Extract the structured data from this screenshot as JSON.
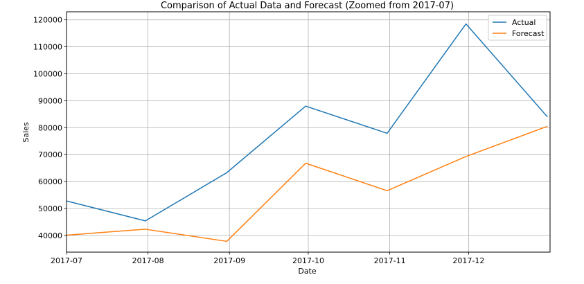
{
  "chart_data": {
    "type": "line",
    "title": "Comparison of Actual Data and Forecast (Zoomed from 2017-07)",
    "xlabel": "Date",
    "ylabel": "Sales",
    "x": [
      "2017-07-01",
      "2017-07-31",
      "2017-08-31",
      "2017-09-30",
      "2017-10-31",
      "2017-11-30",
      "2017-12-31"
    ],
    "x_ticks": [
      "2017-07",
      "2017-08",
      "2017-09",
      "2017-10",
      "2017-11",
      "2017-12"
    ],
    "xlim": [
      "2017-07-01",
      "2018-01-01"
    ],
    "y_ticks": [
      40000,
      50000,
      60000,
      70000,
      80000,
      90000,
      100000,
      110000,
      120000
    ],
    "ylim": [
      33800,
      123000
    ],
    "grid": true,
    "legend_position": "top-right",
    "series": [
      {
        "name": "Actual",
        "color": "#1f77b4",
        "values": [
          52800,
          45400,
          63300,
          88000,
          77900,
          118500,
          84000
        ]
      },
      {
        "name": "Forecast",
        "color": "#ff7f0e",
        "values": [
          40100,
          42300,
          37800,
          66800,
          56600,
          69300,
          80500
        ]
      }
    ]
  }
}
